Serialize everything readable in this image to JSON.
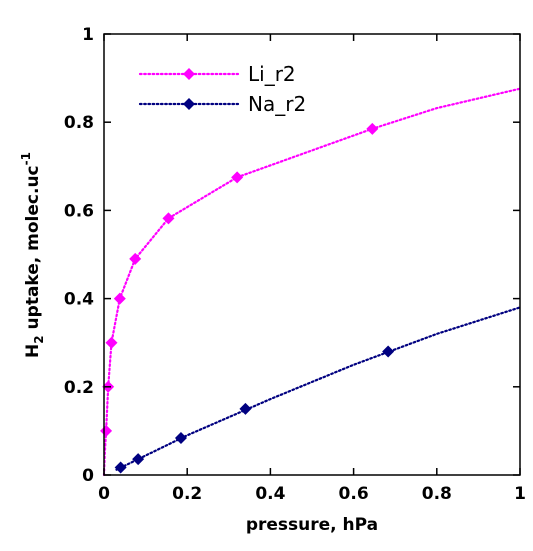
{
  "chart_data": {
    "type": "line",
    "title": "",
    "xlabel": "pressure, hPa",
    "ylabel": {
      "prefix": "H",
      "subscript": "2",
      "middle": " uptake, molec.uc",
      "superscript": "-1"
    },
    "xlim": [
      0,
      1
    ],
    "ylim": [
      0,
      1
    ],
    "xticks": [
      "0",
      "0.2",
      "0.4",
      "0.6",
      "0.8",
      "1"
    ],
    "yticks": [
      "0",
      "0.2",
      "0.4",
      "0.6",
      "0.8",
      "1"
    ],
    "grid": false,
    "legend_position": "top-left",
    "series": [
      {
        "name": "Li_r2",
        "color": "#ff00ff",
        "marker": "diamond",
        "line_style": "dotted",
        "points": [
          {
            "x": 0.005,
            "y": 0.1
          },
          {
            "x": 0.01,
            "y": 0.2
          },
          {
            "x": 0.018,
            "y": 0.3
          },
          {
            "x": 0.038,
            "y": 0.4
          },
          {
            "x": 0.075,
            "y": 0.49
          },
          {
            "x": 0.155,
            "y": 0.582
          },
          {
            "x": 0.32,
            "y": 0.675
          },
          {
            "x": 0.645,
            "y": 0.785
          }
        ],
        "fit": [
          {
            "x": 0,
            "y": 0
          },
          {
            "x": 0.002,
            "y": 0.05
          },
          {
            "x": 0.005,
            "y": 0.1
          },
          {
            "x": 0.01,
            "y": 0.2
          },
          {
            "x": 0.018,
            "y": 0.3
          },
          {
            "x": 0.038,
            "y": 0.4
          },
          {
            "x": 0.075,
            "y": 0.49
          },
          {
            "x": 0.155,
            "y": 0.582
          },
          {
            "x": 0.32,
            "y": 0.675
          },
          {
            "x": 0.645,
            "y": 0.785
          },
          {
            "x": 0.8,
            "y": 0.832
          },
          {
            "x": 1.0,
            "y": 0.876
          }
        ]
      },
      {
        "name": "Na_r2",
        "color": "#000080",
        "marker": "diamond",
        "line_style": "dotted",
        "points": [
          {
            "x": 0.04,
            "y": 0.017
          },
          {
            "x": 0.082,
            "y": 0.036
          },
          {
            "x": 0.185,
            "y": 0.084
          },
          {
            "x": 0.34,
            "y": 0.15
          },
          {
            "x": 0.683,
            "y": 0.28
          }
        ],
        "fit": [
          {
            "x": 0.03,
            "y": 0.012
          },
          {
            "x": 0.2,
            "y": 0.09
          },
          {
            "x": 0.4,
            "y": 0.172
          },
          {
            "x": 0.6,
            "y": 0.25
          },
          {
            "x": 0.8,
            "y": 0.32
          },
          {
            "x": 1.0,
            "y": 0.38
          }
        ]
      }
    ]
  }
}
